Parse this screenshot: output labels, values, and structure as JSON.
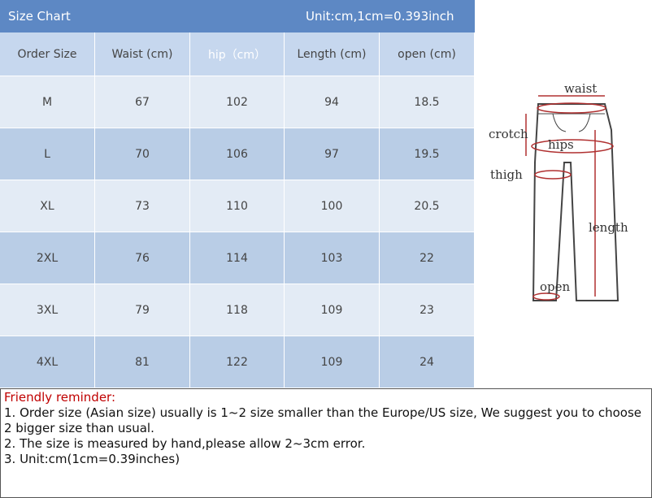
{
  "header": {
    "title": "Size Chart",
    "unit": "Unit:cm,1cm=0.393inch"
  },
  "table": {
    "columns": [
      "Order Size",
      "Waist (cm)",
      "hip（cm）",
      "Length (cm)",
      "open (cm)"
    ],
    "rows": [
      [
        "M",
        67,
        102,
        94,
        18.5
      ],
      [
        "L",
        70,
        106,
        97,
        19.5
      ],
      [
        "XL",
        73,
        110,
        100,
        20.5
      ],
      [
        "2XL",
        76,
        114,
        103,
        22
      ],
      [
        "3XL",
        79,
        118,
        109,
        23
      ],
      [
        "4XL",
        81,
        122,
        109,
        24
      ]
    ]
  },
  "diagram": {
    "waist": "waist",
    "crotch": "crotch",
    "hips": "hips",
    "thigh": "thigh",
    "length": "length",
    "open": "open"
  },
  "reminder": {
    "title": "Friendly reminder:",
    "lines": [
      "1. Order size (Asian size) usually is 1~2 size smaller than the Europe/US size, We suggest you to choose 2 bigger size than usual.",
      "2. The size is measured by hand,please allow 2~3cm error.",
      "3. Unit:cm(1cm=0.39inches)"
    ]
  }
}
